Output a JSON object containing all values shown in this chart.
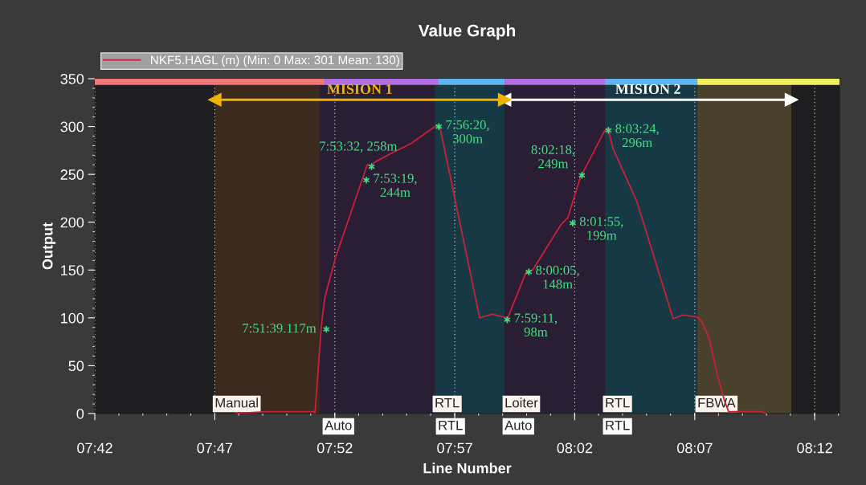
{
  "chart_data": {
    "type": "line",
    "title": "Value Graph",
    "xlabel": "Line Number",
    "ylabel": "Output",
    "xlim": [
      7.7,
      8.2172
    ],
    "ylim": [
      0,
      350
    ],
    "xticks": [
      {
        "value": 7.7,
        "label": "07:42"
      },
      {
        "value": 7.7833,
        "label": "07:47"
      },
      {
        "value": 7.8667,
        "label": "07:52"
      },
      {
        "value": 7.95,
        "label": "07:57"
      },
      {
        "value": 8.0333,
        "label": "08:02"
      },
      {
        "value": 8.1167,
        "label": "08:07"
      },
      {
        "value": 8.2,
        "label": "08:12"
      }
    ],
    "yticks": [
      0,
      50,
      100,
      150,
      200,
      250,
      300,
      350
    ],
    "grid": "x",
    "legend": "top left",
    "line_style": "solid",
    "series": [
      {
        "name": "NKF5.HAGL (m) (Min: 0 Max: 301 Mean: 130)",
        "color": "#c8203a",
        "x": [
          7.7976,
          7.82,
          7.8523,
          7.8529,
          7.8573,
          7.8596,
          7.8618,
          7.8674,
          7.8892,
          7.8919,
          7.8947,
          7.9059,
          7.9204,
          7.9371,
          7.9399,
          7.9673,
          7.9762,
          7.9801,
          7.9868,
          7.9996,
          8.0041,
          8.0236,
          8.0286,
          8.037,
          8.0538,
          8.0565,
          8.0599,
          8.0766,
          8.1017,
          8.1084,
          8.1179,
          8.1213,
          8.1268,
          8.1324,
          8.1374,
          8.1402,
          8.1626,
          8.1659
        ],
        "values": [
          0,
          2,
          2,
          0,
          91,
          120,
          133,
          164,
          260,
          259,
          263,
          272,
          283,
          301,
          298,
          100,
          104,
          102,
          100,
          148,
          150,
          197,
          205,
          246,
          295,
          298,
          277,
          221,
          99,
          103,
          101,
          97,
          78,
          40,
          13,
          2,
          2,
          0
        ]
      },
      {
        "name": "MISION 1",
        "color": "#f0b400",
        "marker": "triangle",
        "x": [
          7.7833,
          7.9846
        ],
        "values": [
          328,
          328
        ]
      },
      {
        "name": "MISION 2",
        "color": "#ffffff",
        "marker": "triangle",
        "x": [
          7.9846,
          8.1838
        ],
        "values": [
          328,
          328
        ]
      },
      {
        "color": "#f07878",
        "x": [
          7.7,
          7.8596
        ],
        "values": [
          347,
          347
        ]
      },
      {
        "color": "#b070e0",
        "x": [
          7.8596,
          7.9383
        ],
        "values": [
          347,
          347
        ]
      },
      {
        "color": "#60b4f0",
        "x": [
          7.9383,
          7.9846
        ],
        "values": [
          347,
          347
        ]
      },
      {
        "color": "#b070e0",
        "x": [
          7.9846,
          8.0543
        ],
        "values": [
          347,
          347
        ]
      },
      {
        "color": "#60b4f0",
        "x": [
          8.0543,
          8.1185
        ],
        "values": [
          347,
          347
        ]
      },
      {
        "color": "#f0f060",
        "x": [
          8.1185,
          8.2172
        ],
        "values": [
          347,
          347
        ]
      }
    ],
    "bands": [
      {
        "axis": "x",
        "from": 7.7833,
        "to": 7.8562,
        "label": "Manual",
        "color": "#3c2a1e"
      },
      {
        "axis": "x",
        "from": 7.8562,
        "to": 7.936,
        "label": null,
        "color": "#2a1e35"
      },
      {
        "axis": "x",
        "from": 7.936,
        "to": 7.9846,
        "label": "RTL",
        "color": "#173945"
      },
      {
        "axis": "x",
        "from": 7.9846,
        "to": 8.0543,
        "label": "Loiter",
        "color": "#2a1e35"
      },
      {
        "axis": "x",
        "from": 8.0543,
        "to": 8.1185,
        "label": "RTL",
        "color": "#173945"
      },
      {
        "axis": "x",
        "from": 8.1185,
        "to": 8.1838,
        "label": "FBWA",
        "color": "#4a412c"
      }
    ],
    "annotations": [
      {
        "text": "7:51:39.117m",
        "x": 7.8608,
        "y": 88
      },
      {
        "text": "7:53:32, 258m",
        "x": 7.8922,
        "y": 258
      },
      {
        "text": "7:53:19,\n244m",
        "x": 7.8886,
        "y": 244
      },
      {
        "text": "7:56:20,\n300m",
        "x": 7.9389,
        "y": 300
      },
      {
        "text": "7:59:11,\n98m",
        "x": 7.9864,
        "y": 98
      },
      {
        "text": "8:00:05,\n148m",
        "x": 8.0014,
        "y": 148
      },
      {
        "text": "8:01:55,\n199m",
        "x": 8.0319,
        "y": 199
      },
      {
        "text": "8:02:18,\n249m",
        "x": 8.0383,
        "y": 249
      },
      {
        "text": "8:03:24,\n296m",
        "x": 8.0567,
        "y": 296
      },
      {
        "text": "Auto",
        "x": 7.8596,
        "y": 0
      },
      {
        "text": "RTL",
        "x": 7.9383,
        "y": 0
      },
      {
        "text": "Auto",
        "x": 7.9846,
        "y": 0
      },
      {
        "text": "RTL",
        "x": 8.0543,
        "y": 0
      }
    ]
  }
}
